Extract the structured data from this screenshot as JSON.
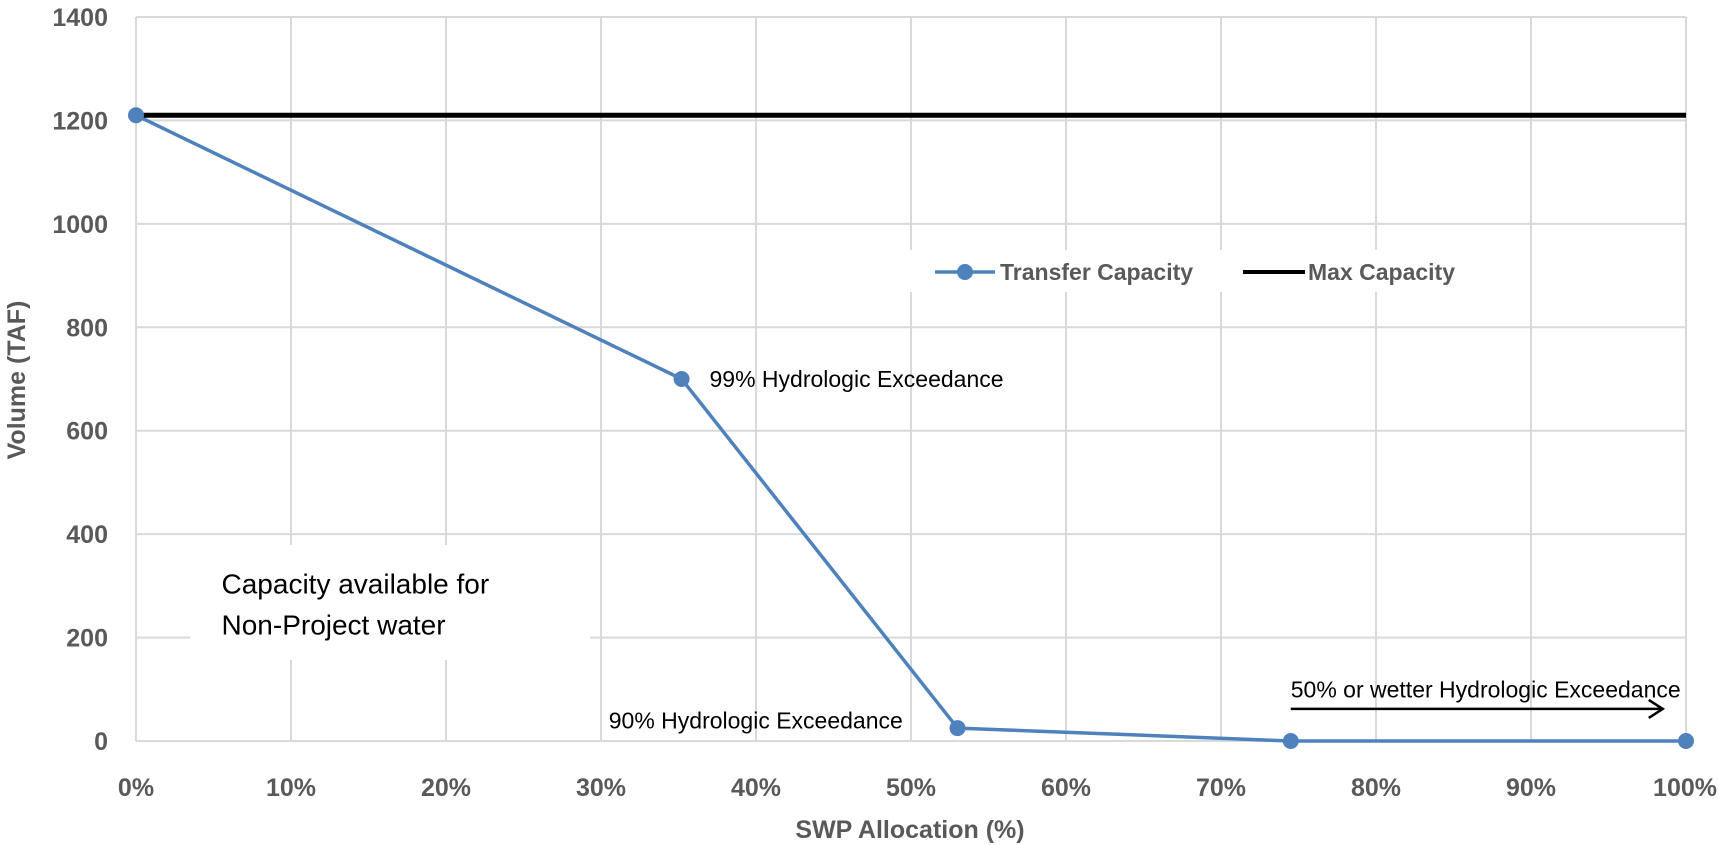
{
  "chart_data": {
    "type": "line",
    "xlabel": "SWP Allocation (%)",
    "ylabel": "Volume (TAF)",
    "xlim": [
      0,
      100
    ],
    "ylim": [
      0,
      1400
    ],
    "x_ticks": [
      "0%",
      "10%",
      "20%",
      "30%",
      "40%",
      "50%",
      "60%",
      "70%",
      "80%",
      "90%",
      "100%"
    ],
    "y_ticks": [
      "0",
      "200",
      "400",
      "600",
      "800",
      "1000",
      "1200",
      "1400"
    ],
    "grid": true,
    "legend_position": "upper-center",
    "series": [
      {
        "name": "Transfer Capacity",
        "color": "#4f81bd",
        "marker": "circle",
        "points": [
          {
            "x": 0,
            "y": 1210
          },
          {
            "x": 35.2,
            "y": 700
          },
          {
            "x": 53,
            "y": 25
          },
          {
            "x": 74.5,
            "y": 0
          },
          {
            "x": 100,
            "y": 0
          }
        ]
      },
      {
        "name": "Max Capacity",
        "color": "#000000",
        "marker": "none",
        "points": [
          {
            "x": 0,
            "y": 1210
          },
          {
            "x": 100,
            "y": 1210
          }
        ]
      }
    ],
    "annotations": [
      {
        "text": "99% Hydrologic Exceedance",
        "x": 37,
        "y": 700
      },
      {
        "text": "90% Hydrologic Exceedance",
        "x": 30.5,
        "y": 40
      },
      {
        "text": "50% or wetter Hydrologic Exceedance",
        "x": 74.5,
        "y": 100
      },
      {
        "text": "Capacity available for",
        "x": 5,
        "y": 305
      },
      {
        "text": "Non-Project water",
        "x": 5,
        "y": 225
      }
    ],
    "arrow": {
      "from": [
        74.5,
        62
      ],
      "to": [
        98.5,
        62
      ]
    }
  }
}
